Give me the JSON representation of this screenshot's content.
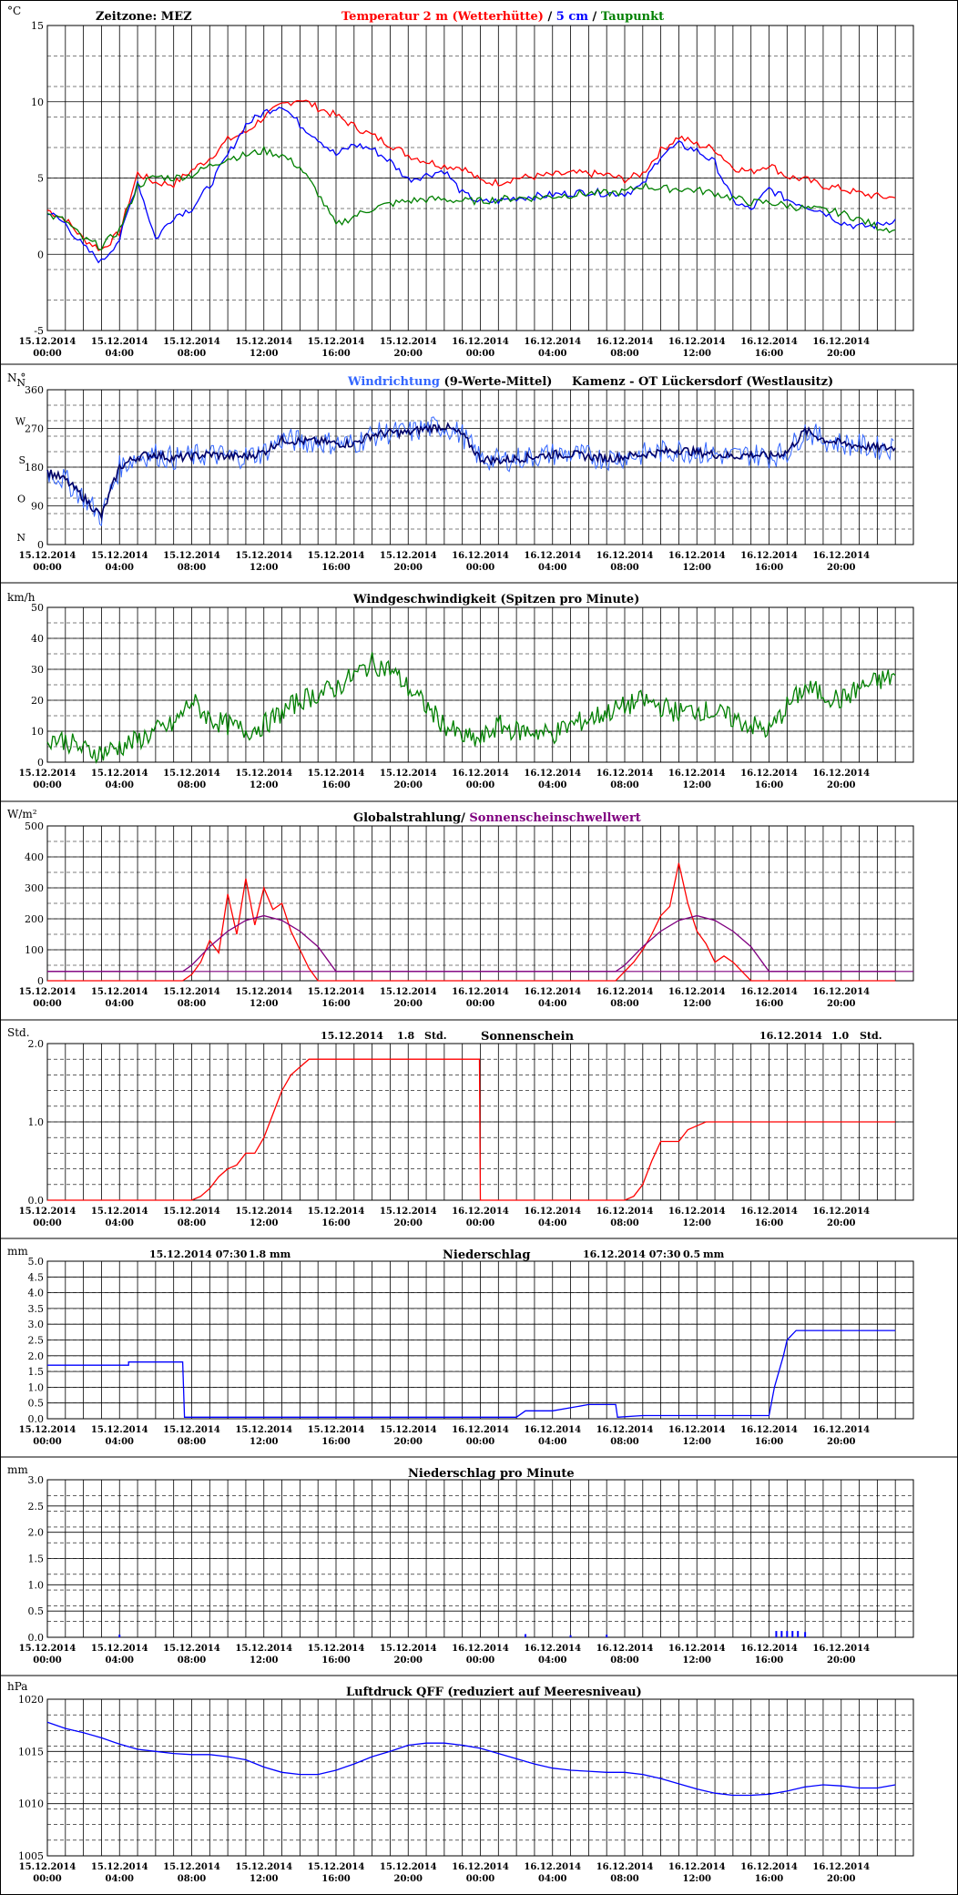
{
  "time_axis": {
    "dates": [
      "15.12.2014",
      "15.12.2014",
      "15.12.2014",
      "15.12.2014",
      "15.12.2014",
      "15.12.2014",
      "16.12.2014",
      "16.12.2014",
      "16.12.2014",
      "16.12.2014",
      "16.12.2014",
      "16.12.2014"
    ],
    "times": [
      "00:00",
      "04:00",
      "08:00",
      "12:00",
      "16:00",
      "20:00",
      "00:00",
      "04:00",
      "08:00",
      "12:00",
      "16:00",
      "20:00"
    ]
  },
  "colors": {
    "red": "#ff0000",
    "blue": "#0000ff",
    "green": "#008000",
    "purple": "#800080",
    "navy": "#000066",
    "lightblue": "#3366ff",
    "grid": "#000000"
  },
  "chart_data": [
    {
      "id": "temperature",
      "type": "line",
      "unit": "°C",
      "header_left": "Zeitzone: MEZ",
      "title_parts": [
        "Temperatur 2 m (Wetterhütte)",
        " / ",
        "5 cm",
        " / ",
        "Taupunkt"
      ],
      "ylim": [
        -5,
        15
      ],
      "yticks": [
        -5,
        0,
        5,
        10,
        15
      ],
      "series": [
        {
          "name": "Temperatur 2 m (Wetterhütte)",
          "color": "#ff0000",
          "x": [
            0,
            1,
            2,
            3,
            4,
            5,
            6,
            7,
            8,
            9,
            10,
            11,
            12,
            13,
            14,
            15,
            16,
            17,
            18,
            19,
            20,
            21,
            22,
            23,
            24,
            25,
            26,
            27,
            28,
            29,
            30,
            31,
            32,
            33,
            34,
            35,
            36,
            37,
            38,
            39,
            40,
            41,
            42,
            43,
            44,
            45,
            46,
            47
          ],
          "y": [
            2.9,
            2.3,
            1.0,
            0.3,
            1.4,
            5.3,
            4.7,
            4.6,
            5.5,
            6.3,
            7.5,
            8.0,
            9.0,
            9.8,
            10.2,
            9.6,
            9.1,
            8.4,
            7.8,
            7.2,
            6.5,
            6.1,
            5.8,
            5.7,
            4.8,
            4.7,
            5.0,
            5.1,
            5.2,
            5.3,
            5.3,
            5.2,
            4.9,
            5.3,
            6.8,
            7.7,
            7.2,
            6.9,
            5.7,
            5.4,
            5.9,
            5.1,
            4.9,
            4.5,
            4.3,
            4.0,
            3.8,
            3.7
          ]
        },
        {
          "name": "5 cm",
          "color": "#0000ff",
          "x": [
            0,
            1,
            2,
            3,
            4,
            5,
            6,
            7,
            8,
            9,
            10,
            11,
            12,
            13,
            14,
            15,
            16,
            17,
            18,
            19,
            20,
            21,
            22,
            23,
            24,
            25,
            26,
            27,
            28,
            29,
            30,
            31,
            32,
            33,
            34,
            35,
            36,
            37,
            38,
            39,
            40,
            41,
            42,
            43,
            44,
            45,
            46,
            47
          ],
          "y": [
            2.8,
            2.0,
            0.5,
            -0.5,
            1.0,
            4.8,
            1.0,
            2.5,
            3.0,
            4.5,
            6.5,
            8.5,
            9.3,
            9.8,
            8.5,
            7.6,
            6.5,
            7.2,
            6.9,
            6.1,
            4.9,
            5.2,
            5.5,
            4.0,
            3.4,
            3.5,
            3.7,
            3.8,
            3.9,
            4.0,
            4.1,
            4.0,
            4.0,
            4.5,
            6.5,
            7.2,
            6.8,
            6.0,
            3.5,
            2.9,
            4.3,
            3.6,
            3.2,
            2.8,
            2.1,
            1.8,
            1.9,
            2.3
          ]
        },
        {
          "name": "Taupunkt",
          "color": "#008000",
          "x": [
            0,
            1,
            2,
            3,
            4,
            5,
            6,
            7,
            8,
            9,
            10,
            11,
            12,
            13,
            14,
            15,
            16,
            17,
            18,
            19,
            20,
            21,
            22,
            23,
            24,
            25,
            26,
            27,
            28,
            29,
            30,
            31,
            32,
            33,
            34,
            35,
            36,
            37,
            38,
            39,
            40,
            41,
            42,
            43,
            44,
            45,
            46,
            47
          ],
          "y": [
            2.6,
            2.2,
            1.0,
            0.5,
            1.6,
            4.5,
            5.1,
            5.0,
            5.2,
            5.8,
            6.3,
            6.5,
            6.8,
            6.5,
            5.7,
            4.0,
            1.9,
            2.5,
            3.0,
            3.3,
            3.5,
            3.6,
            3.6,
            3.5,
            3.5,
            3.6,
            3.7,
            3.7,
            3.8,
            3.9,
            4.0,
            4.0,
            4.1,
            4.5,
            4.3,
            4.3,
            4.2,
            4.0,
            3.7,
            3.4,
            3.4,
            3.2,
            3.0,
            2.9,
            2.7,
            2.3,
            1.8,
            1.6
          ]
        }
      ]
    },
    {
      "id": "wind_direction",
      "type": "line",
      "unit": "N °",
      "title_parts": [
        "Windrichtung",
        " (9-Werte-Mittel)",
        "Kamenz - OT Lückersdorf (Westlausitz)"
      ],
      "ylim": [
        0,
        360
      ],
      "yticks": [
        0,
        90,
        180,
        270,
        360
      ],
      "compass_labels": [
        "N",
        "O",
        "S",
        "W",
        "N"
      ],
      "series": [
        {
          "name": "Windrichtung",
          "color": "#000066",
          "x": [
            0,
            1,
            2,
            3,
            4,
            5,
            6,
            7,
            8,
            9,
            10,
            11,
            12,
            13,
            14,
            15,
            16,
            17,
            18,
            19,
            20,
            21,
            22,
            23,
            24,
            25,
            26,
            27,
            28,
            29,
            30,
            31,
            32,
            33,
            34,
            35,
            36,
            37,
            38,
            39,
            40,
            41,
            42,
            43,
            44,
            45,
            46,
            47
          ],
          "y": [
            170,
            150,
            110,
            65,
            180,
            205,
            210,
            200,
            205,
            210,
            205,
            205,
            215,
            245,
            240,
            240,
            235,
            235,
            255,
            260,
            260,
            270,
            275,
            255,
            200,
            195,
            200,
            205,
            210,
            210,
            205,
            200,
            205,
            210,
            215,
            220,
            215,
            210,
            205,
            210,
            205,
            215,
            265,
            245,
            235,
            230,
            225,
            225
          ]
        }
      ]
    },
    {
      "id": "wind_speed",
      "type": "line",
      "unit": "km/h",
      "title": "Windgeschwindigkeit (Spitzen pro Minute)",
      "ylim": [
        0,
        50
      ],
      "yticks": [
        0,
        10,
        20,
        30,
        40,
        50
      ],
      "series": [
        {
          "name": "Windgeschwindigkeit",
          "color": "#008000",
          "x": [
            0,
            1,
            2,
            3,
            4,
            5,
            6,
            7,
            8,
            9,
            10,
            11,
            12,
            13,
            14,
            15,
            16,
            17,
            18,
            19,
            20,
            21,
            22,
            23,
            24,
            25,
            26,
            27,
            28,
            29,
            30,
            31,
            32,
            33,
            34,
            35,
            36,
            37,
            38,
            39,
            40,
            41,
            42,
            43,
            44,
            45,
            46,
            47
          ],
          "y": [
            8,
            7,
            4,
            3,
            5,
            7,
            10,
            12,
            20,
            14,
            12,
            10,
            12,
            16,
            20,
            22,
            24,
            28,
            32,
            30,
            24,
            18,
            12,
            8,
            7,
            12,
            10,
            10,
            9,
            12,
            14,
            16,
            18,
            20,
            18,
            16,
            17,
            16,
            14,
            12,
            10,
            18,
            24,
            22,
            20,
            24,
            26,
            28
          ]
        }
      ]
    },
    {
      "id": "radiation",
      "type": "line",
      "unit": "W/m²",
      "title_parts": [
        "Globalstrahlung/ ",
        "Sonnenscheinschwellwert"
      ],
      "ylim": [
        0,
        500
      ],
      "yticks": [
        0,
        100,
        200,
        300,
        400,
        500
      ],
      "threshold": 30,
      "series": [
        {
          "name": "Globalstrahlung",
          "color": "#ff0000",
          "x": [
            0,
            7.5,
            8,
            8.5,
            9,
            9.5,
            10,
            10.5,
            11,
            11.5,
            12,
            12.5,
            13,
            13.5,
            14,
            14.5,
            15,
            24,
            31.5,
            32,
            32.5,
            33,
            33.5,
            34,
            34.5,
            35,
            35.5,
            36,
            36.5,
            37,
            37.5,
            38,
            38.5,
            39,
            47
          ],
          "y": [
            0,
            0,
            20,
            60,
            130,
            90,
            280,
            150,
            330,
            180,
            300,
            230,
            250,
            160,
            100,
            40,
            0,
            0,
            0,
            30,
            60,
            100,
            150,
            210,
            240,
            380,
            250,
            160,
            120,
            60,
            80,
            60,
            30,
            0,
            0
          ]
        },
        {
          "name": "Sonnenscheinschwellwert",
          "color": "#800080",
          "x": [
            0,
            7.5,
            8,
            9,
            10,
            11,
            12,
            13,
            14,
            15,
            16,
            24,
            31.5,
            32,
            33,
            34,
            35,
            36,
            37,
            38,
            39,
            40,
            47
          ],
          "y": [
            30,
            30,
            50,
            110,
            160,
            195,
            210,
            195,
            160,
            110,
            30,
            30,
            30,
            50,
            110,
            160,
            195,
            210,
            195,
            160,
            110,
            30,
            30
          ]
        }
      ]
    },
    {
      "id": "sunshine",
      "type": "line",
      "unit": "Std.",
      "title": "Sonnenschein",
      "day1": {
        "date": "15.12.2014",
        "value": "1.8",
        "unit": "Std."
      },
      "day2": {
        "date": "16.12.2014",
        "value": "1.0",
        "unit": "Std."
      },
      "ylim": [
        0,
        2
      ],
      "yticks": [
        0.0,
        1.0,
        2.0
      ],
      "series": [
        {
          "name": "Sonnenschein",
          "color": "#ff0000",
          "x": [
            0,
            8,
            8.5,
            9,
            9.5,
            10,
            10.5,
            11,
            11.5,
            12,
            12.5,
            13,
            13.5,
            14,
            14.5,
            15,
            23.95,
            24,
            32,
            32.5,
            33,
            33.5,
            34,
            35,
            35.5,
            36,
            36.5,
            37,
            47
          ],
          "y": [
            0,
            0,
            0.05,
            0.15,
            0.3,
            0.4,
            0.45,
            0.6,
            0.6,
            0.8,
            1.1,
            1.4,
            1.6,
            1.7,
            1.8,
            1.8,
            1.8,
            0,
            0,
            0.05,
            0.2,
            0.5,
            0.75,
            0.75,
            0.9,
            0.95,
            1.0,
            1.0,
            1.0
          ]
        }
      ]
    },
    {
      "id": "precipitation",
      "type": "line",
      "unit": "mm",
      "title": "Niederschlag",
      "day1": {
        "date": "15.12.2014 07:30",
        "value": "1.8",
        "unit": "mm"
      },
      "day2": {
        "date": "16.12.2014 07:30",
        "value": "0.5",
        "unit": "mm"
      },
      "ylim": [
        0,
        5
      ],
      "yticks": [
        0.0,
        0.5,
        1.0,
        1.5,
        2.0,
        2.5,
        3.0,
        3.5,
        4.0,
        4.5,
        5.0
      ],
      "series": [
        {
          "name": "Niederschlag",
          "color": "#0000ff",
          "x": [
            0,
            4.5,
            4.5,
            7.5,
            7.6,
            26,
            26.5,
            28,
            29,
            30,
            31,
            31.5,
            31.6,
            33,
            40,
            40.3,
            40.8,
            41,
            41.5,
            42,
            47
          ],
          "y": [
            1.7,
            1.7,
            1.8,
            1.8,
            0.05,
            0.05,
            0.25,
            0.25,
            0.35,
            0.45,
            0.45,
            0.45,
            0.05,
            0.1,
            0.1,
            1.0,
            2.0,
            2.5,
            2.8,
            2.8,
            2.8
          ]
        }
      ]
    },
    {
      "id": "precip_per_min",
      "type": "bar",
      "unit": "mm",
      "title": "Niederschlag pro Minute",
      "ylim": [
        0,
        3
      ],
      "yticks": [
        0.0,
        0.5,
        1.0,
        1.5,
        2.0,
        2.5,
        3.0
      ],
      "bars": [
        {
          "x": 4.0,
          "y": 0.05
        },
        {
          "x": 26.5,
          "y": 0.06
        },
        {
          "x": 29.0,
          "y": 0.04
        },
        {
          "x": 31.0,
          "y": 0.05
        },
        {
          "x": 40.4,
          "y": 0.12
        },
        {
          "x": 40.7,
          "y": 0.12
        },
        {
          "x": 41.0,
          "y": 0.12
        },
        {
          "x": 41.3,
          "y": 0.12
        },
        {
          "x": 41.6,
          "y": 0.12
        },
        {
          "x": 42.0,
          "y": 0.1
        }
      ]
    },
    {
      "id": "pressure",
      "type": "line",
      "unit": "hPa",
      "title": "Luftdruck QFF (reduziert auf Meeresniveau)",
      "ylim": [
        1005,
        1020
      ],
      "yticks": [
        1005,
        1010,
        1015,
        1020
      ],
      "series": [
        {
          "name": "Luftdruck QFF",
          "color": "#0000ff",
          "x": [
            0,
            1,
            2,
            3,
            4,
            5,
            6,
            7,
            8,
            9,
            10,
            11,
            12,
            13,
            14,
            15,
            16,
            17,
            18,
            19,
            20,
            21,
            22,
            23,
            24,
            25,
            26,
            27,
            28,
            29,
            30,
            31,
            32,
            33,
            34,
            35,
            36,
            37,
            38,
            39,
            40,
            41,
            42,
            43,
            44,
            45,
            46,
            47
          ],
          "y": [
            1017.8,
            1017.2,
            1016.8,
            1016.3,
            1015.7,
            1015.2,
            1015.0,
            1014.8,
            1014.7,
            1014.7,
            1014.5,
            1014.2,
            1013.5,
            1013.0,
            1012.8,
            1012.8,
            1013.2,
            1013.8,
            1014.5,
            1015.0,
            1015.6,
            1015.8,
            1015.8,
            1015.6,
            1015.3,
            1014.8,
            1014.3,
            1013.8,
            1013.4,
            1013.2,
            1013.1,
            1013.0,
            1013.0,
            1012.8,
            1012.4,
            1011.9,
            1011.4,
            1011.0,
            1010.8,
            1010.8,
            1010.9,
            1011.2,
            1011.6,
            1011.8,
            1011.7,
            1011.5,
            1011.5,
            1011.8
          ]
        }
      ]
    }
  ]
}
